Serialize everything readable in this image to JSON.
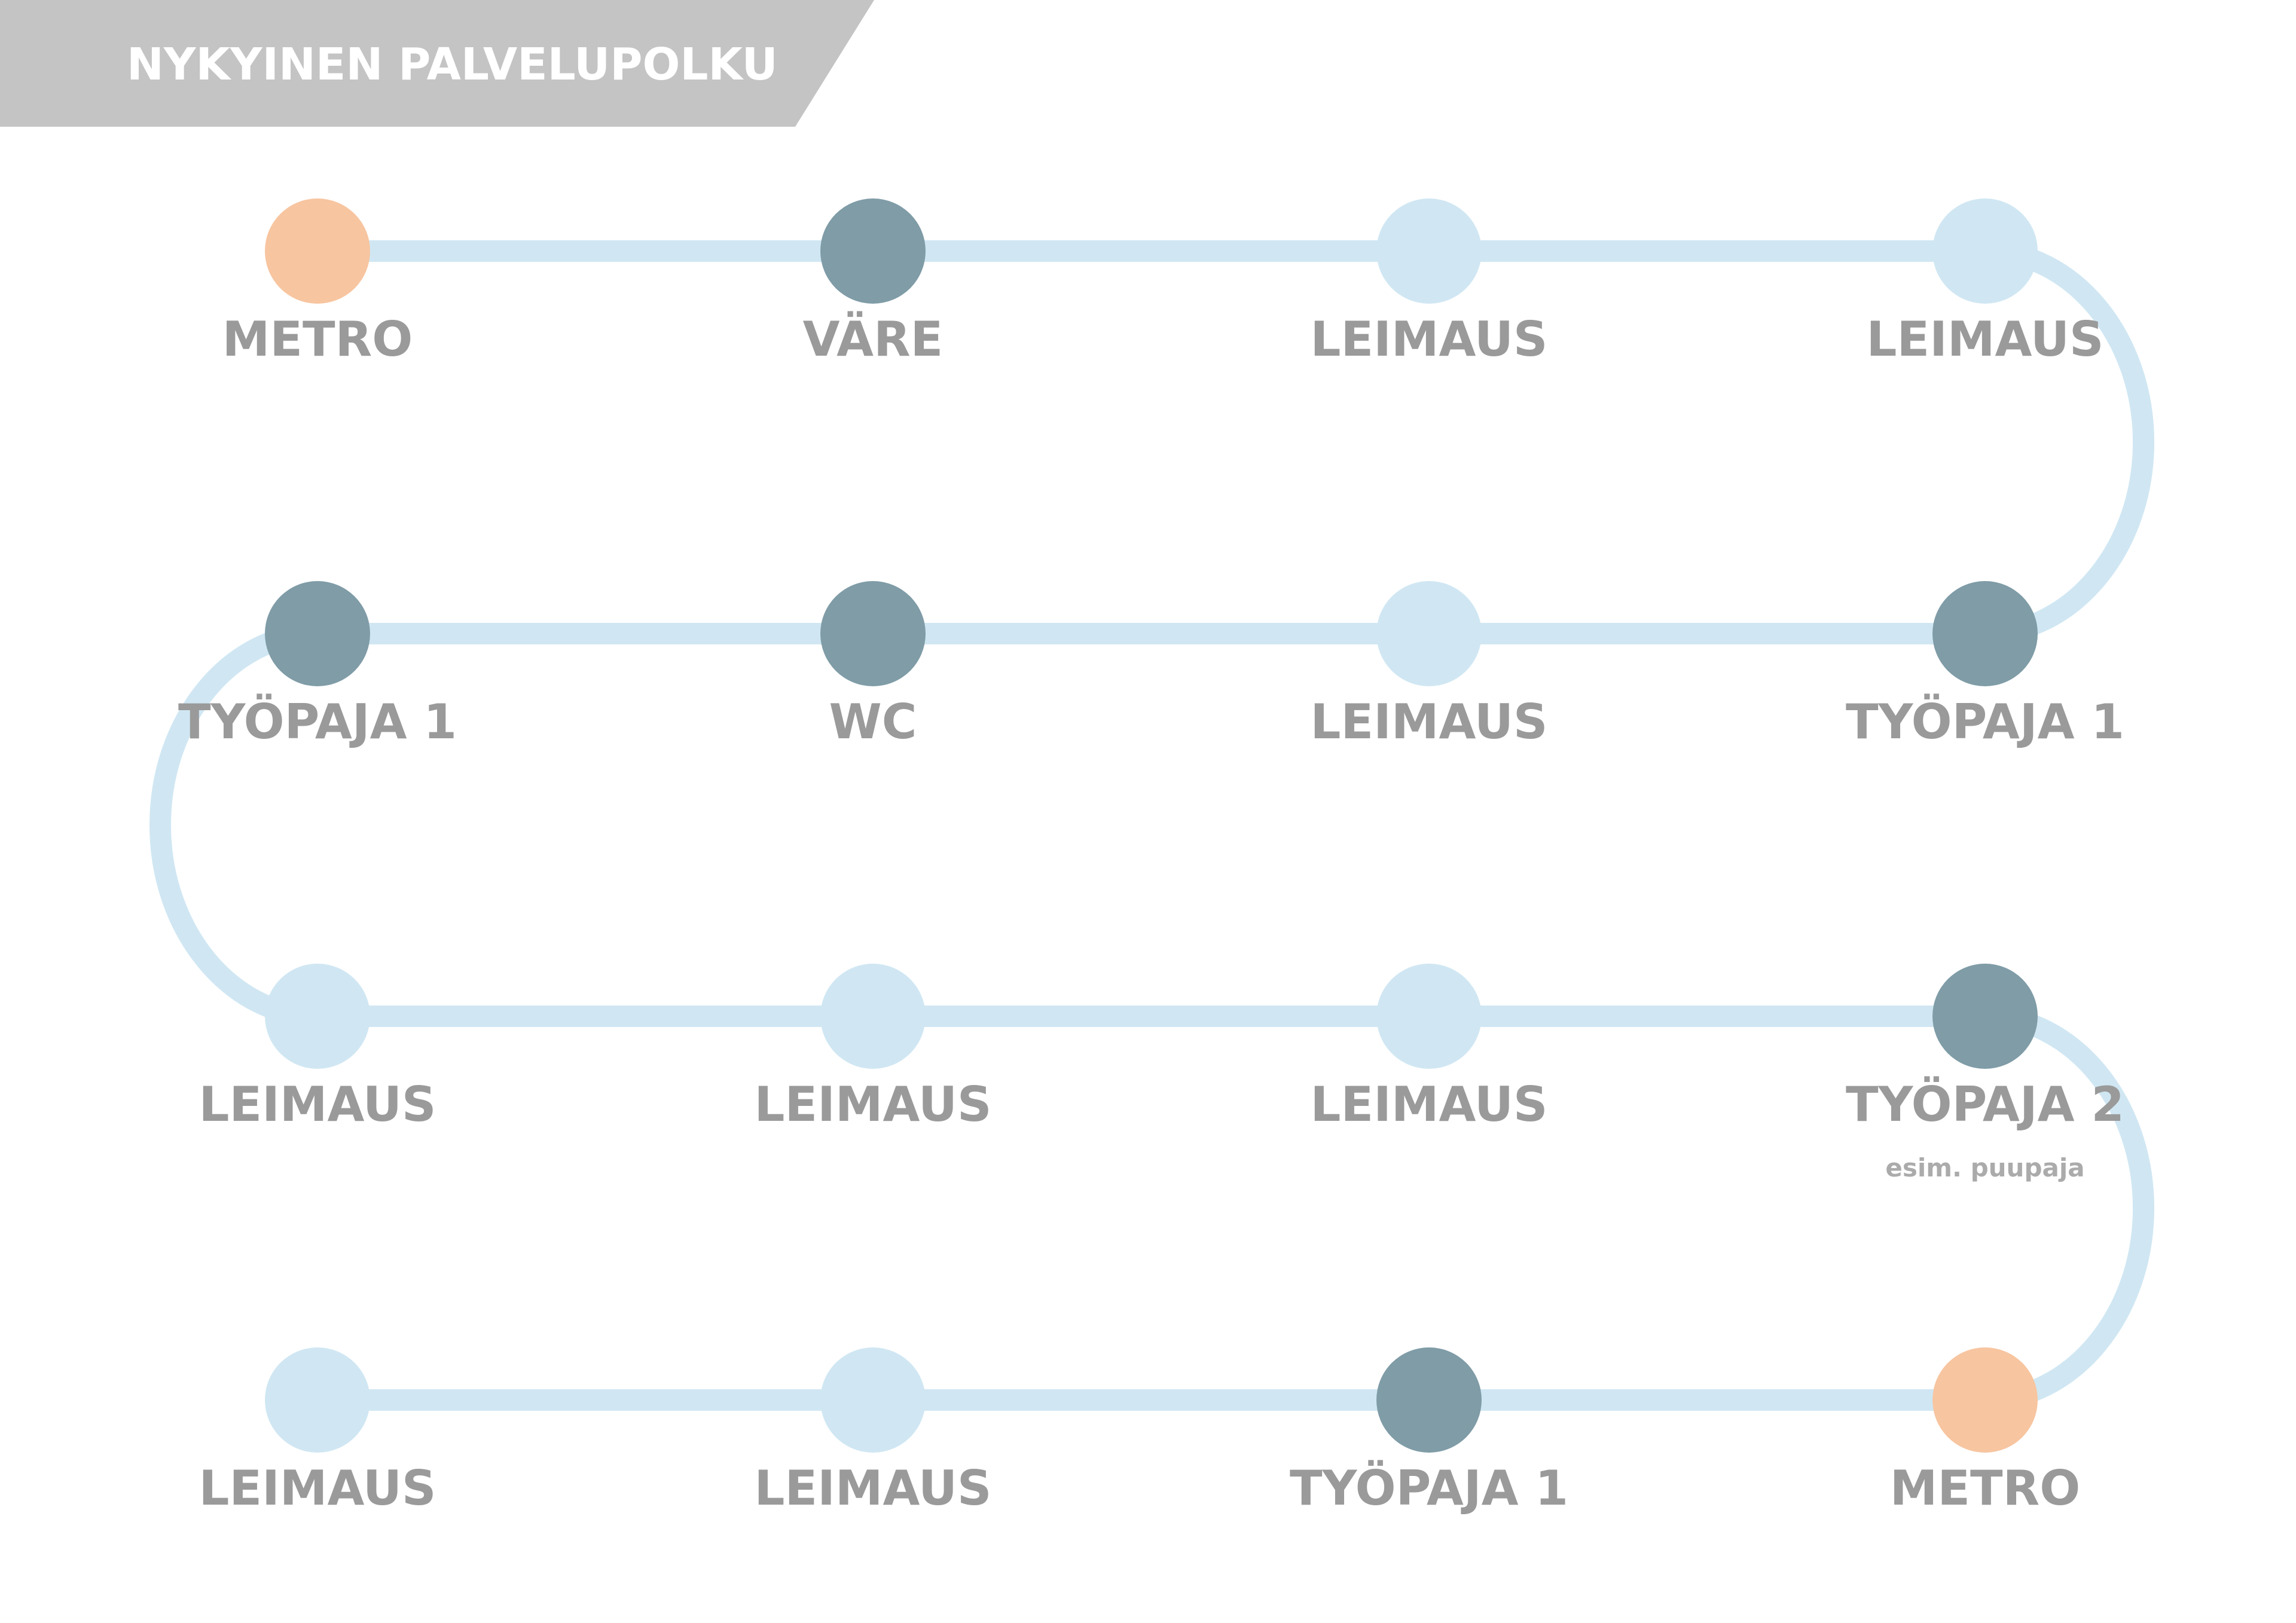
{
  "header": {
    "title": "NYKYINEN PALVELUPOLKU"
  },
  "colors": {
    "header_bg": "#c4c4c4",
    "path": "#d0e7f3",
    "label": "#9a9a9a",
    "node_light": "#d0e7f3",
    "node_dark": "#7f9ca7",
    "node_orange": "#f7c5a0"
  },
  "rows": [
    {
      "direction": "left-to-right",
      "nodes": [
        {
          "label": "METRO",
          "type": "orange"
        },
        {
          "label": "VÄRE",
          "type": "dark"
        },
        {
          "label": "LEIMAUS",
          "type": "light"
        },
        {
          "label": "LEIMAUS",
          "type": "light"
        }
      ]
    },
    {
      "direction": "right-to-left",
      "nodes": [
        {
          "label": "TYÖPAJA 1",
          "type": "dark"
        },
        {
          "label": "LEIMAUS",
          "type": "light"
        },
        {
          "label": "WC",
          "type": "dark"
        },
        {
          "label": "TYÖPAJA 1",
          "type": "dark"
        }
      ]
    },
    {
      "direction": "left-to-right",
      "nodes": [
        {
          "label": "LEIMAUS",
          "type": "light"
        },
        {
          "label": "LEIMAUS",
          "type": "light"
        },
        {
          "label": "LEIMAUS",
          "type": "light"
        },
        {
          "label": "TYÖPAJA 2",
          "type": "dark",
          "sublabel": "esim. puupaja"
        }
      ]
    },
    {
      "direction": "right-to-left",
      "nodes": [
        {
          "label": "METRO",
          "type": "orange"
        },
        {
          "label": "TYÖPAJA 1",
          "type": "dark"
        },
        {
          "label": "LEIMAUS",
          "type": "light"
        },
        {
          "label": "LEIMAUS",
          "type": "light"
        }
      ]
    }
  ]
}
